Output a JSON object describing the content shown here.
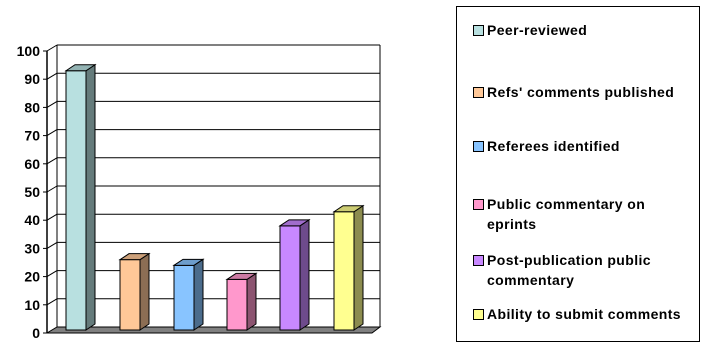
{
  "chart_data": {
    "type": "bar",
    "categories": [
      "Peer-reviewed",
      "Refs' comments published",
      "Referees identified",
      "Public commentary on eprints",
      "Post-publication public commentary",
      "Ability to submit comments"
    ],
    "values": [
      93,
      26,
      24,
      19,
      38,
      43
    ],
    "colors": [
      "#b8e0e0",
      "#ffc898",
      "#88c4ff",
      "#ff98cc",
      "#c888ff",
      "#ffff90"
    ],
    "title": "",
    "xlabel": "",
    "ylabel": "",
    "ylim": [
      0,
      100
    ],
    "yticks": [
      "0",
      "10",
      "20",
      "30",
      "40",
      "50",
      "60",
      "70",
      "80",
      "90",
      "100"
    ],
    "grid": true,
    "legend_position": "right"
  }
}
